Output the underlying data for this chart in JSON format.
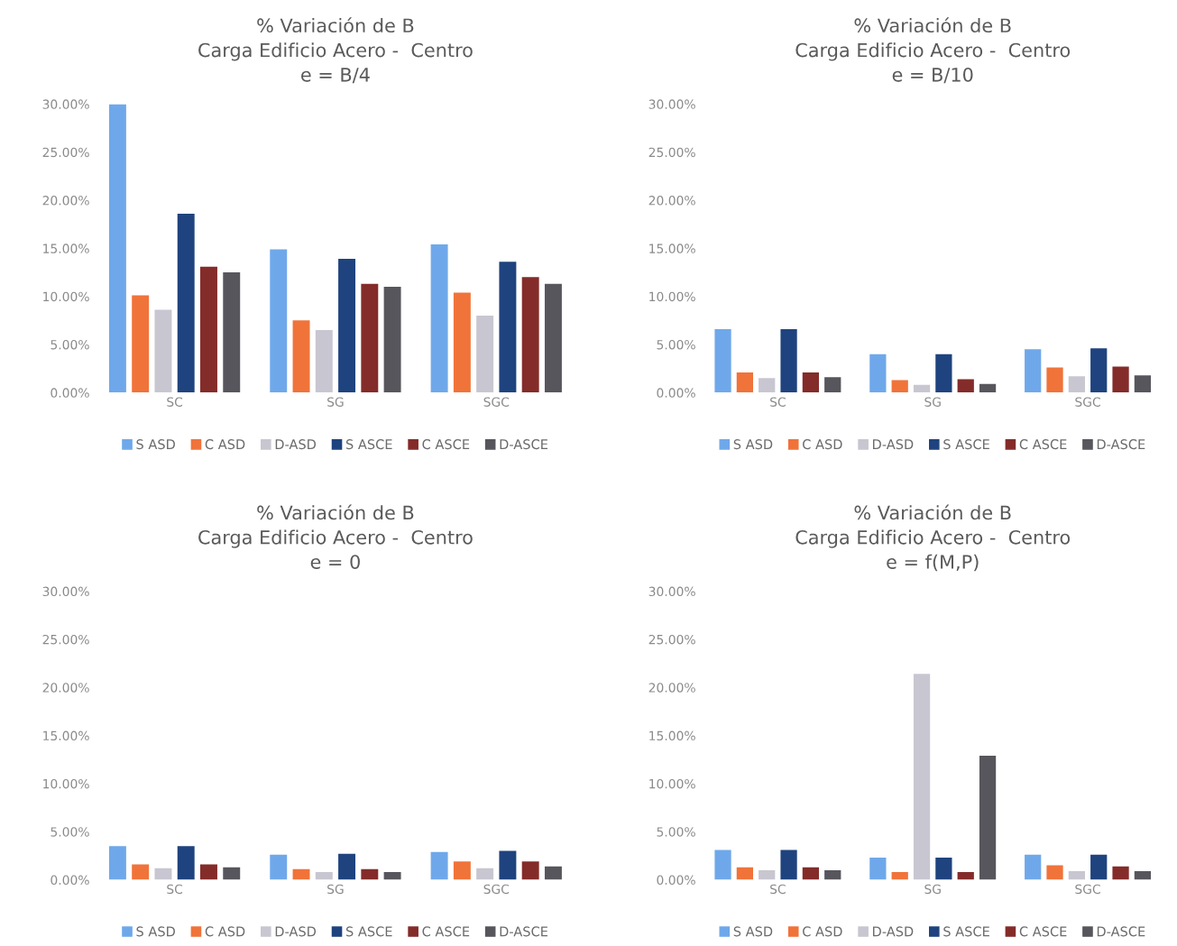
{
  "chart_data": [
    {
      "type": "bar",
      "title": "% Variación de B\nCarga Edificio Acero -  Centro\ne = B/4",
      "categories": [
        "SC",
        "SG",
        "SGC"
      ],
      "ylim": [
        0,
        30
      ],
      "yticks": [
        {
          "value": 0,
          "label": "0.00%"
        },
        {
          "value": 5,
          "label": "5.00%"
        },
        {
          "value": 10,
          "label": "10.00%"
        },
        {
          "value": 15,
          "label": "15.00%"
        },
        {
          "value": 20,
          "label": "20.00%"
        },
        {
          "value": 25,
          "label": "25.00%"
        },
        {
          "value": 30,
          "label": "30.00%"
        }
      ],
      "legend": "bottom",
      "grid": false,
      "series": [
        {
          "name": "S ASD",
          "color": "#6fa8ea",
          "values": [
            30.0,
            14.9,
            15.4
          ]
        },
        {
          "name": "C ASD",
          "color": "#f0733a",
          "values": [
            10.1,
            7.5,
            10.4
          ]
        },
        {
          "name": "D-ASD",
          "color": "#c8c6d0",
          "values": [
            8.6,
            6.5,
            8.0
          ]
        },
        {
          "name": "S ASCE",
          "color": "#1f437e",
          "values": [
            18.6,
            13.9,
            13.6
          ]
        },
        {
          "name": "C ASCE",
          "color": "#842c2a",
          "values": [
            13.1,
            11.3,
            12.0
          ]
        },
        {
          "name": "D-ASCE",
          "color": "#56565c",
          "values": [
            12.5,
            11.0,
            11.3
          ]
        }
      ]
    },
    {
      "type": "bar",
      "title": "% Variación de B\nCarga Edificio Acero -  Centro\ne = B/10",
      "categories": [
        "SC",
        "SG",
        "SGC"
      ],
      "ylim": [
        0,
        30
      ],
      "yticks": [
        {
          "value": 0,
          "label": "0.00%"
        },
        {
          "value": 5,
          "label": "5.00%"
        },
        {
          "value": 10,
          "label": "10.00%"
        },
        {
          "value": 15,
          "label": "15.00%"
        },
        {
          "value": 20,
          "label": "20.00%"
        },
        {
          "value": 25,
          "label": "25.00%"
        },
        {
          "value": 30,
          "label": "30.00%"
        }
      ],
      "legend": "bottom",
      "grid": false,
      "series": [
        {
          "name": "S ASD",
          "color": "#6fa8ea",
          "values": [
            6.6,
            4.0,
            4.5
          ]
        },
        {
          "name": "C ASD",
          "color": "#f0733a",
          "values": [
            2.1,
            1.3,
            2.6
          ]
        },
        {
          "name": "D-ASD",
          "color": "#c8c6d0",
          "values": [
            1.5,
            0.8,
            1.7
          ]
        },
        {
          "name": "S ASCE",
          "color": "#1f437e",
          "values": [
            6.6,
            4.0,
            4.6
          ]
        },
        {
          "name": "C ASCE",
          "color": "#842c2a",
          "values": [
            2.1,
            1.4,
            2.7
          ]
        },
        {
          "name": "D-ASCE",
          "color": "#56565c",
          "values": [
            1.6,
            0.9,
            1.8
          ]
        }
      ]
    },
    {
      "type": "bar",
      "title": "% Variación de B\nCarga Edificio Acero -  Centro\ne = 0",
      "categories": [
        "SC",
        "SG",
        "SGC"
      ],
      "ylim": [
        0,
        30
      ],
      "yticks": [
        {
          "value": 0,
          "label": "0.00%"
        },
        {
          "value": 5,
          "label": "5.00%"
        },
        {
          "value": 10,
          "label": "10.00%"
        },
        {
          "value": 15,
          "label": "15.00%"
        },
        {
          "value": 20,
          "label": "20.00%"
        },
        {
          "value": 25,
          "label": "25.00%"
        },
        {
          "value": 30,
          "label": "30.00%"
        }
      ],
      "legend": "bottom",
      "grid": false,
      "series": [
        {
          "name": "S ASD",
          "color": "#6fa8ea",
          "values": [
            3.5,
            2.6,
            2.9
          ]
        },
        {
          "name": "C ASD",
          "color": "#f0733a",
          "values": [
            1.6,
            1.1,
            1.9
          ]
        },
        {
          "name": "D-ASD",
          "color": "#c8c6d0",
          "values": [
            1.2,
            0.8,
            1.2
          ]
        },
        {
          "name": "S ASCE",
          "color": "#1f437e",
          "values": [
            3.5,
            2.7,
            3.0
          ]
        },
        {
          "name": "C ASCE",
          "color": "#842c2a",
          "values": [
            1.6,
            1.1,
            1.9
          ]
        },
        {
          "name": "D-ASCE",
          "color": "#56565c",
          "values": [
            1.3,
            0.8,
            1.4
          ]
        }
      ]
    },
    {
      "type": "bar",
      "title": "% Variación de B\nCarga Edificio Acero -  Centro\ne = f(M,P)",
      "categories": [
        "SC",
        "SG",
        "SGC"
      ],
      "ylim": [
        0,
        30
      ],
      "yticks": [
        {
          "value": 0,
          "label": "0.00%"
        },
        {
          "value": 5,
          "label": "5.00%"
        },
        {
          "value": 10,
          "label": "10.00%"
        },
        {
          "value": 15,
          "label": "15.00%"
        },
        {
          "value": 20,
          "label": "20.00%"
        },
        {
          "value": 25,
          "label": "25.00%"
        },
        {
          "value": 30,
          "label": "30.00%"
        }
      ],
      "legend": "bottom",
      "grid": false,
      "series": [
        {
          "name": "S ASD",
          "color": "#6fa8ea",
          "values": [
            3.1,
            2.3,
            2.6
          ]
        },
        {
          "name": "C ASD",
          "color": "#f0733a",
          "values": [
            1.3,
            0.8,
            1.5
          ]
        },
        {
          "name": "D-ASD",
          "color": "#c8c6d0",
          "values": [
            1.0,
            21.4,
            0.9
          ]
        },
        {
          "name": "S ASCE",
          "color": "#1f437e",
          "values": [
            3.1,
            2.3,
            2.6
          ]
        },
        {
          "name": "C ASCE",
          "color": "#842c2a",
          "values": [
            1.3,
            0.8,
            1.4
          ]
        },
        {
          "name": "D-ASCE",
          "color": "#56565c",
          "values": [
            1.0,
            12.9,
            0.9
          ]
        }
      ]
    }
  ]
}
